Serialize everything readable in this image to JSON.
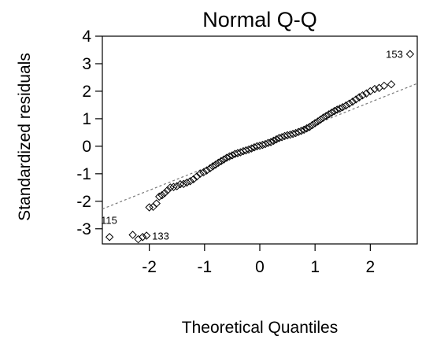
{
  "chart_data": {
    "type": "scatter",
    "title": "Normal Q-Q",
    "xlabel": "Theoretical Quantiles",
    "ylabel": "Standardized residuals",
    "xlim": [
      -2.85,
      2.85
    ],
    "ylim": [
      -3.55,
      4.0
    ],
    "x_ticks": [
      -2,
      -1,
      0,
      1,
      2
    ],
    "y_ticks": [
      -3,
      -2,
      -1,
      0,
      1,
      2,
      3,
      4
    ],
    "grid": false,
    "marker": "open-diamond",
    "reference_line": {
      "style": "dotted",
      "intercept": 0.0,
      "slope": 0.8
    },
    "labeled_points": [
      {
        "label": "153",
        "x": 2.72,
        "y": 3.35
      },
      {
        "label": "115",
        "x": -2.72,
        "y": -3.3
      },
      {
        "label": "133",
        "x": -2.05,
        "y": -3.25
      }
    ],
    "points": [
      [
        -2.72,
        -3.3
      ],
      [
        -2.3,
        -3.22
      ],
      [
        -2.2,
        -3.38
      ],
      [
        -2.12,
        -3.3
      ],
      [
        -2.05,
        -3.25
      ],
      [
        -2.0,
        -2.22
      ],
      [
        -1.93,
        -2.2
      ],
      [
        -1.87,
        -2.08
      ],
      [
        -1.82,
        -1.83
      ],
      [
        -1.77,
        -1.78
      ],
      [
        -1.72,
        -1.7
      ],
      [
        -1.67,
        -1.6
      ],
      [
        -1.62,
        -1.5
      ],
      [
        -1.56,
        -1.48
      ],
      [
        -1.5,
        -1.45
      ],
      [
        -1.44,
        -1.38
      ],
      [
        -1.38,
        -1.37
      ],
      [
        -1.32,
        -1.32
      ],
      [
        -1.26,
        -1.27
      ],
      [
        -1.2,
        -1.2
      ],
      [
        -1.14,
        -1.1
      ],
      [
        -1.08,
        -1.0
      ],
      [
        -1.02,
        -0.95
      ],
      [
        -0.96,
        -0.88
      ],
      [
        -0.9,
        -0.8
      ],
      [
        -0.85,
        -0.73
      ],
      [
        -0.8,
        -0.67
      ],
      [
        -0.75,
        -0.6
      ],
      [
        -0.7,
        -0.54
      ],
      [
        -0.65,
        -0.48
      ],
      [
        -0.6,
        -0.42
      ],
      [
        -0.55,
        -0.37
      ],
      [
        -0.5,
        -0.33
      ],
      [
        -0.45,
        -0.28
      ],
      [
        -0.4,
        -0.25
      ],
      [
        -0.35,
        -0.22
      ],
      [
        -0.3,
        -0.18
      ],
      [
        -0.25,
        -0.15
      ],
      [
        -0.2,
        -0.12
      ],
      [
        -0.15,
        -0.08
      ],
      [
        -0.1,
        -0.04
      ],
      [
        -0.05,
        0.0
      ],
      [
        0.0,
        0.02
      ],
      [
        0.05,
        0.05
      ],
      [
        0.1,
        0.08
      ],
      [
        0.15,
        0.12
      ],
      [
        0.2,
        0.15
      ],
      [
        0.25,
        0.2
      ],
      [
        0.3,
        0.25
      ],
      [
        0.35,
        0.3
      ],
      [
        0.4,
        0.33
      ],
      [
        0.45,
        0.37
      ],
      [
        0.5,
        0.4
      ],
      [
        0.55,
        0.42
      ],
      [
        0.6,
        0.45
      ],
      [
        0.65,
        0.48
      ],
      [
        0.7,
        0.52
      ],
      [
        0.75,
        0.56
      ],
      [
        0.8,
        0.6
      ],
      [
        0.85,
        0.65
      ],
      [
        0.9,
        0.7
      ],
      [
        0.95,
        0.77
      ],
      [
        1.0,
        0.84
      ],
      [
        1.05,
        0.9
      ],
      [
        1.1,
        0.97
      ],
      [
        1.15,
        1.04
      ],
      [
        1.2,
        1.1
      ],
      [
        1.25,
        1.16
      ],
      [
        1.3,
        1.22
      ],
      [
        1.35,
        1.28
      ],
      [
        1.4,
        1.33
      ],
      [
        1.45,
        1.37
      ],
      [
        1.5,
        1.42
      ],
      [
        1.56,
        1.48
      ],
      [
        1.62,
        1.55
      ],
      [
        1.68,
        1.62
      ],
      [
        1.74,
        1.7
      ],
      [
        1.8,
        1.78
      ],
      [
        1.86,
        1.85
      ],
      [
        1.93,
        1.92
      ],
      [
        2.0,
        2.0
      ],
      [
        2.08,
        2.08
      ],
      [
        2.16,
        2.12
      ],
      [
        2.25,
        2.2
      ],
      [
        2.38,
        2.25
      ],
      [
        2.72,
        3.35
      ]
    ]
  }
}
